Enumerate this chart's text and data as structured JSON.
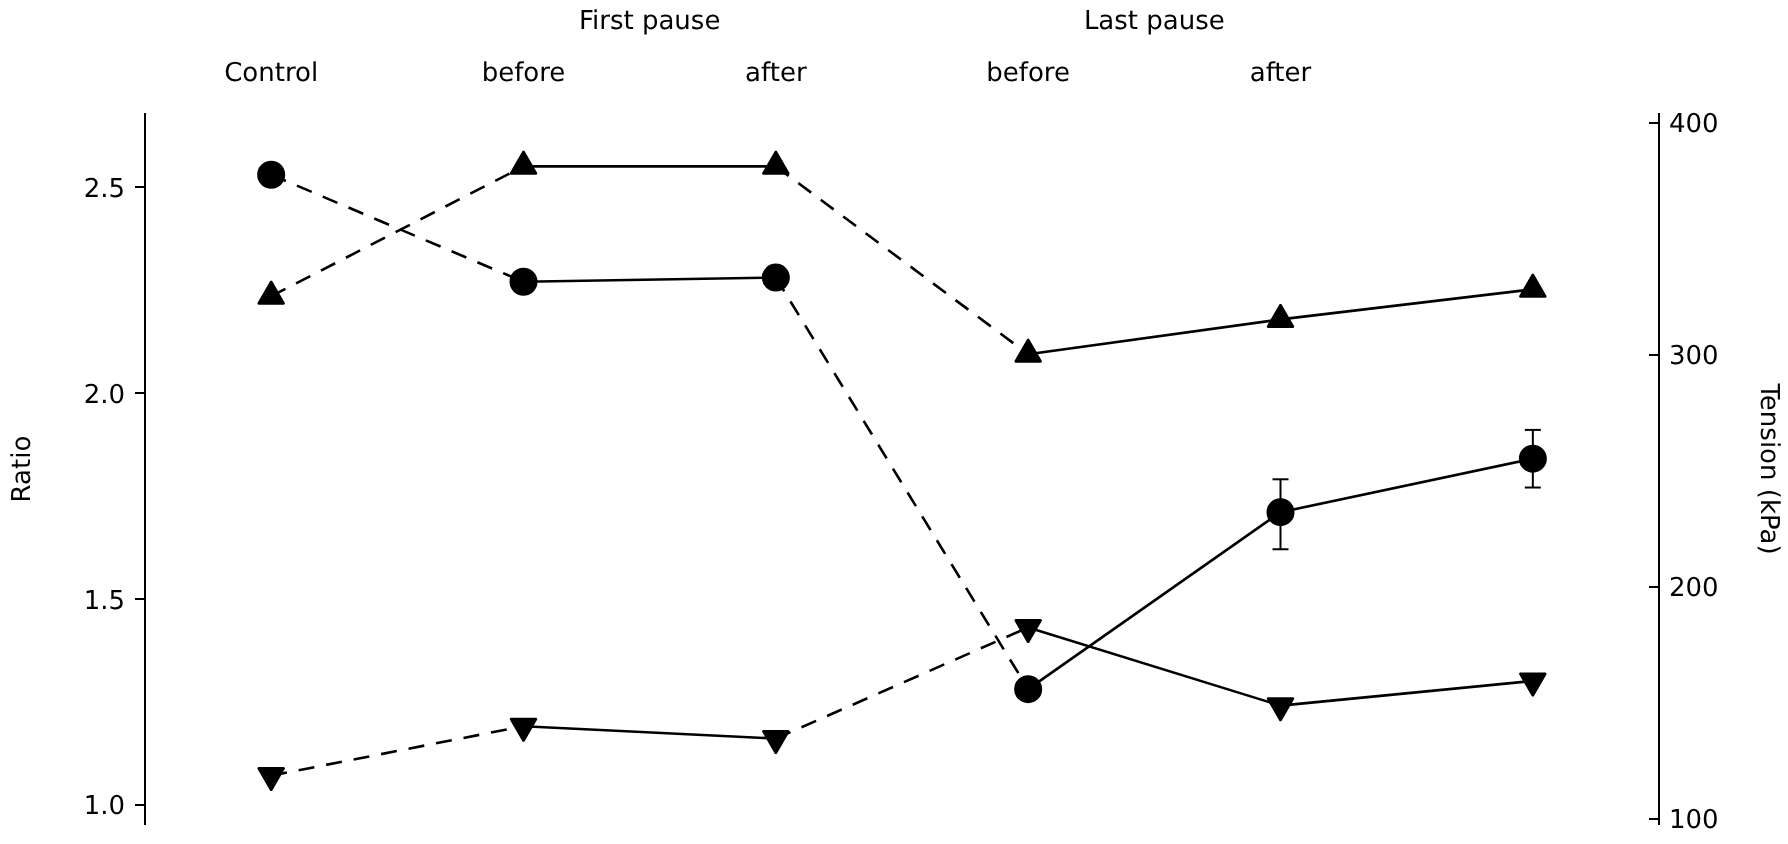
{
  "chart_data": {
    "type": "line",
    "ylabel": "Ratio",
    "y2label": "Tension (kPa)",
    "categories": [
      "Control",
      "before",
      "after",
      "before",
      "after",
      null
    ],
    "ylim": [
      0.95,
      2.68
    ],
    "y2lim": [
      97,
      404
    ],
    "yticks": [
      {
        "value": 1,
        "label": "1.0"
      },
      {
        "value": 1.5,
        "label": "1.5"
      },
      {
        "value": 2,
        "label": "2.0"
      },
      {
        "value": 2.5,
        "label": "2.5"
      }
    ],
    "y2ticks": [
      100,
      200,
      300,
      400
    ],
    "annotations": [
      "First pause",
      "Last pause"
    ],
    "series": [
      {
        "type": "scatter",
        "marker": "circle",
        "color": "#000000",
        "values": [
          2.53,
          2.27,
          2.28,
          1.28,
          1.71,
          1.84
        ],
        "errors": [
          null,
          null,
          null,
          null,
          [
            1.62,
            1.79
          ],
          [
            1.77,
            1.91
          ]
        ]
      },
      {
        "line_style": "dashed",
        "color": "#000000",
        "values": [
          2.53,
          2.27,
          null,
          null,
          null,
          null
        ]
      },
      {
        "line_style": "solid",
        "color": "#000000",
        "values": [
          null,
          2.27,
          2.28,
          null,
          null,
          null
        ]
      },
      {
        "line_style": "dashed",
        "color": "#000000",
        "values": [
          null,
          null,
          2.28,
          1.28,
          null,
          null
        ]
      },
      {
        "line_style": "solid",
        "color": "#000000",
        "values": [
          null,
          null,
          null,
          1.28,
          1.71,
          1.84
        ]
      },
      {
        "type": "scatter",
        "marker": "triangle",
        "axis": "y2",
        "color": "#000000",
        "values": [
          325,
          381,
          381,
          300,
          315,
          328
        ]
      },
      {
        "line_style": "dashed",
        "axis": "y2",
        "color": "#000000",
        "values": [
          325,
          381,
          null,
          null,
          null,
          null
        ]
      },
      {
        "line_style": "solid",
        "axis": "y2",
        "color": "#000000",
        "values": [
          null,
          381,
          381,
          null,
          null,
          null
        ]
      },
      {
        "line_style": "dashed",
        "axis": "y2",
        "color": "#000000",
        "values": [
          null,
          null,
          381,
          300,
          null,
          null
        ]
      },
      {
        "line_style": "solid",
        "axis": "y2",
        "color": "#000000",
        "values": [
          null,
          null,
          null,
          300,
          315,
          328
        ]
      },
      {
        "type": "scatter",
        "color": "#000000",
        "values": [
          1.07,
          1.19,
          1.16,
          1.43,
          1.24,
          1.3
        ]
      },
      {
        "line_style": "dashed",
        "color": "#000000",
        "values": [
          1.07,
          1.19,
          null,
          null,
          null,
          null
        ]
      },
      {
        "line_style": "solid",
        "color": "#000000",
        "values": [
          null,
          1.19,
          1.16,
          null,
          null,
          null
        ]
      },
      {
        "line_style": "dashed",
        "color": "#000000",
        "values": [
          null,
          null,
          1.16,
          1.43,
          null,
          null
        ]
      },
      {
        "line_style": "solid",
        "color": "#000000",
        "values": [
          null,
          null,
          null,
          1.43,
          1.24,
          1.3
        ]
      }
    ]
  }
}
